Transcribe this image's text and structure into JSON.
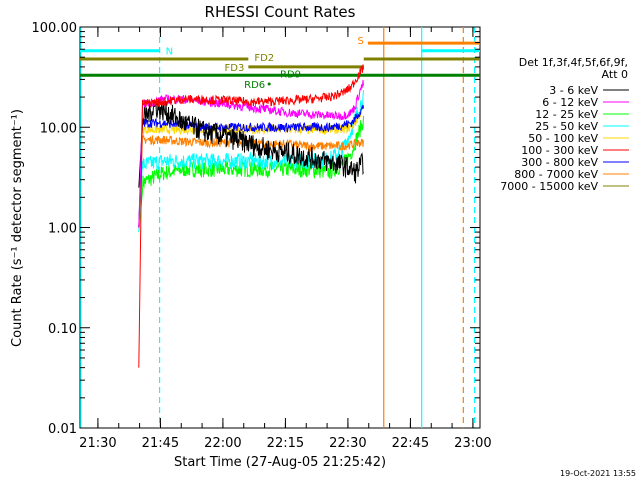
{
  "chart_data": {
    "type": "line",
    "title": "RHESSI Count Rates",
    "xlabel": "Start Time (27-Aug-05 21:25:42)",
    "ylabel": "Count Rate (s⁻¹ detector segment⁻¹)",
    "yscale": "log",
    "ylim": [
      0.01,
      100
    ],
    "y_ticks": [
      {
        "value": 0.01,
        "label": "0.01"
      },
      {
        "value": 0.1,
        "label": "0.10"
      },
      {
        "value": 1,
        "label": "1.00"
      },
      {
        "value": 10,
        "label": "10.00"
      },
      {
        "value": 100,
        "label": "100.00"
      }
    ],
    "x_unit": "minutes after 21:25:42",
    "xlim": [
      0,
      96
    ],
    "x_ticks": [
      {
        "value": 4.3,
        "label": "21:30"
      },
      {
        "value": 19.3,
        "label": "21:45"
      },
      {
        "value": 34.3,
        "label": "22:00"
      },
      {
        "value": 49.3,
        "label": "22:15"
      },
      {
        "value": 64.3,
        "label": "22:30"
      },
      {
        "value": 79.3,
        "label": "22:45"
      },
      {
        "value": 94.3,
        "label": "23:00"
      }
    ],
    "legend": {
      "placement": "right",
      "header": [
        "Det 1f,3f,4f,5f,6f,9f,",
        "Att 0"
      ]
    },
    "series": [
      {
        "name": "3 - 6 keV",
        "color": "#000000",
        "values_x": [
          14.1,
          15,
          18,
          21,
          25,
          30,
          35,
          40,
          45,
          50,
          55,
          60,
          63,
          65,
          66,
          68.1
        ],
        "values_y": [
          2.5,
          12,
          16,
          14,
          11,
          9,
          8,
          7,
          6,
          5.5,
          5,
          4.5,
          4.2,
          3.8,
          3.5,
          4.5
        ]
      },
      {
        "name": "6 - 12 keV",
        "color": "#ff00ff",
        "values_x": [
          14.1,
          15,
          20,
          25,
          30,
          35,
          40,
          45,
          50,
          55,
          60,
          63,
          65,
          66,
          67,
          68.1
        ],
        "values_y": [
          1,
          17,
          19,
          19,
          18,
          17,
          16,
          15,
          14,
          13.5,
          13,
          13,
          14,
          16,
          22,
          28
        ]
      },
      {
        "name": "12 - 25 keV",
        "color": "#00ff00",
        "values_x": [
          14.1,
          15,
          20,
          25,
          30,
          35,
          40,
          45,
          50,
          55,
          60,
          63,
          65,
          66,
          67,
          68.1
        ],
        "values_y": [
          0.9,
          2.8,
          3.5,
          3.8,
          3.8,
          3.8,
          3.8,
          3.8,
          3.8,
          3.8,
          3.6,
          4.2,
          5.5,
          7,
          9,
          12
        ]
      },
      {
        "name": "25 - 50 keV",
        "color": "#00ffff",
        "values_x": [
          14.1,
          15,
          20,
          25,
          30,
          35,
          40,
          45,
          50,
          55,
          60,
          63,
          65,
          66,
          67,
          68.1
        ],
        "values_y": [
          0.9,
          4.2,
          4.6,
          4.6,
          4.6,
          4.6,
          4.6,
          4.6,
          4.6,
          4.6,
          4.8,
          6,
          9,
          12,
          16,
          20
        ]
      },
      {
        "name": "50 - 100 keV",
        "color": "#ffd700",
        "values_x": [
          14.1,
          15,
          20,
          25,
          30,
          35,
          40,
          45,
          50,
          55,
          60,
          63,
          65,
          66,
          67,
          68.1
        ],
        "values_y": [
          1,
          9.5,
          9.5,
          9.5,
          9.5,
          9.5,
          9.5,
          9.5,
          9.5,
          9.5,
          9.5,
          9.5,
          10,
          11,
          13,
          16
        ]
      },
      {
        "name": "100 - 300 keV",
        "color": "#ff0000",
        "values_x": [
          14.1,
          15,
          20,
          25,
          30,
          35,
          40,
          45,
          50,
          55,
          60,
          63,
          65,
          66,
          67,
          68.1
        ],
        "values_y": [
          0.04,
          17,
          18,
          19,
          19,
          18.5,
          18,
          18,
          18.5,
          19,
          20,
          22,
          25,
          29,
          34,
          40
        ]
      },
      {
        "name": "300 - 800 keV",
        "color": "#0000ff",
        "values_x": [
          14.1,
          15,
          20,
          25,
          30,
          35,
          40,
          45,
          50,
          55,
          60,
          63,
          65,
          66,
          67,
          68.1
        ],
        "values_y": [
          1,
          11,
          11,
          10.5,
          10,
          10,
          10,
          10,
          10,
          10,
          10,
          10.5,
          11,
          12,
          14,
          16
        ]
      },
      {
        "name": "800 - 7000 keV",
        "color": "#ff8000",
        "values_x": [
          14.1,
          15,
          20,
          25,
          30,
          35,
          40,
          45,
          50,
          55,
          60,
          63,
          65,
          66,
          67,
          68.1
        ],
        "values_y": [
          1,
          7.5,
          7.5,
          7.2,
          7,
          7,
          7,
          6.8,
          6.8,
          6.5,
          6.5,
          6.5,
          6.7,
          6.8,
          7,
          7
        ]
      },
      {
        "name": "7000 - 15000 keV",
        "color": "#808000",
        "values_x": [],
        "values_y": []
      }
    ],
    "status_bars": [
      {
        "label": "N",
        "color": "#00ffff",
        "y": 58,
        "segments": [
          [
            0,
            19.1
          ],
          [
            82,
            96
          ]
        ]
      },
      {
        "label": "S",
        "color": "#ff8000",
        "y": 69,
        "segments": [
          [
            69.1,
            96
          ]
        ]
      },
      {
        "label": "FD2",
        "color": "#808000",
        "y": 48,
        "segments": [
          [
            0,
            40.4
          ],
          [
            68.1,
            96
          ]
        ]
      },
      {
        "label": "FD3",
        "color": "#808000",
        "y": 40,
        "segments": [
          [
            40.4,
            68.1
          ]
        ]
      },
      {
        "label": "RD9",
        "color": "#008000",
        "y": 33,
        "segments": [
          [
            0,
            96
          ]
        ]
      },
      {
        "label": "RD6",
        "color": "#008000",
        "y": 27,
        "segments": [
          [
            45.4,
            45.4
          ]
        ]
      }
    ],
    "vertical_lines": [
      {
        "x": 0.2,
        "color": "#00ffff",
        "style": "solid"
      },
      {
        "x": 19.1,
        "color": "#00ffff",
        "style": "dashed"
      },
      {
        "x": 72.9,
        "color": "#ff8000",
        "style": "solid"
      },
      {
        "x": 82,
        "color": "#00ffff",
        "style": "solid"
      },
      {
        "x": 92,
        "color": "#ff8000",
        "style": "dashed"
      },
      {
        "x": 94.7,
        "color": "#00ffff",
        "style": "dashed"
      }
    ],
    "grid": false
  },
  "footer_timestamp": "19-Oct-2021 13:55"
}
